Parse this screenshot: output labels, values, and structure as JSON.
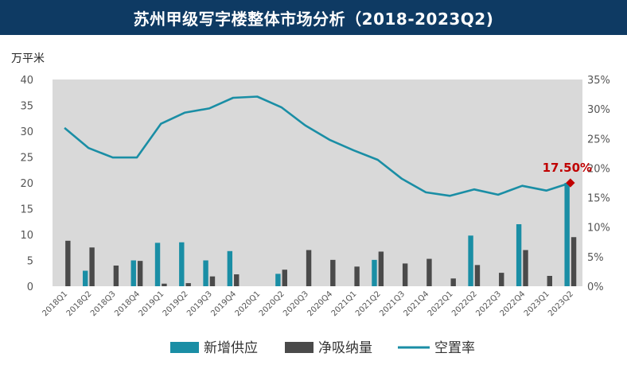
{
  "chart_data": {
    "type": "bar",
    "title": "苏州甲级写字楼整体市场分析（2018-2023Q2)",
    "ylabel": "万平米",
    "ylim": [
      0,
      40
    ],
    "y_ticks": [
      "0",
      "5",
      "10",
      "15",
      "20",
      "25",
      "30",
      "35",
      "40"
    ],
    "y2lim": [
      0,
      35
    ],
    "y2_ticks": [
      "0%",
      "5%",
      "10%",
      "15%",
      "20%",
      "25%",
      "30%",
      "35%"
    ],
    "categories": [
      "2018Q1",
      "2018Q2",
      "2018Q3",
      "2018Q4",
      "2019Q1",
      "2019Q2",
      "2019Q3",
      "2019Q4",
      "2020Q1",
      "2020Q2",
      "2020Q3",
      "2020Q4",
      "2021Q1",
      "2021Q2",
      "2021Q3",
      "2021Q4",
      "2022Q1",
      "2022Q2",
      "2022Q3",
      "2022Q4",
      "2023Q1",
      "2023Q2"
    ],
    "series": [
      {
        "name": "新增供应",
        "type": "bar",
        "axis": "left",
        "color": "#1a8ea5",
        "values": [
          0,
          3.0,
          0,
          5.0,
          8.4,
          8.5,
          5.0,
          6.8,
          0,
          2.4,
          0,
          0,
          0,
          5.1,
          0,
          0,
          0,
          9.8,
          0,
          12.0,
          0,
          20.0
        ]
      },
      {
        "name": "净吸纳量",
        "type": "bar",
        "axis": "left",
        "color": "#4a4a4a",
        "values": [
          8.8,
          7.5,
          4.0,
          4.9,
          0.5,
          0.6,
          1.9,
          2.3,
          0,
          3.2,
          7.0,
          5.1,
          3.8,
          6.7,
          4.4,
          5.3,
          1.5,
          4.1,
          2.6,
          7.0,
          2.0,
          9.5
        ]
      },
      {
        "name": "空置率",
        "type": "line",
        "axis": "right",
        "unit": "%",
        "color": "#1a8ea5",
        "values": [
          26.8,
          23.4,
          21.8,
          21.8,
          27.5,
          29.4,
          30.1,
          31.9,
          32.1,
          30.3,
          27.2,
          24.8,
          23.0,
          21.4,
          18.2,
          15.9,
          15.3,
          16.4,
          15.5,
          17.0,
          16.2,
          17.5
        ]
      }
    ],
    "annotation": {
      "text": "17.50%",
      "category": "2023Q2",
      "value": 17.5,
      "color": "#c00000"
    },
    "grid": false,
    "legend_position": "bottom"
  }
}
